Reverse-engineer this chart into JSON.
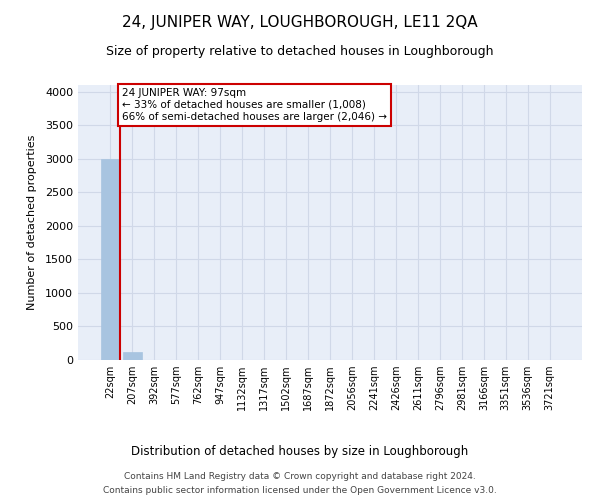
{
  "title": "24, JUNIPER WAY, LOUGHBOROUGH, LE11 2QA",
  "subtitle": "Size of property relative to detached houses in Loughborough",
  "xlabel": "Distribution of detached houses by size in Loughborough",
  "ylabel": "Number of detached properties",
  "categories": [
    "22sqm",
    "207sqm",
    "392sqm",
    "577sqm",
    "762sqm",
    "947sqm",
    "1132sqm",
    "1317sqm",
    "1502sqm",
    "1687sqm",
    "1872sqm",
    "2056sqm",
    "2241sqm",
    "2426sqm",
    "2611sqm",
    "2796sqm",
    "2981sqm",
    "3166sqm",
    "3351sqm",
    "3536sqm",
    "3721sqm"
  ],
  "values": [
    3000,
    120,
    5,
    2,
    1,
    1,
    1,
    0,
    0,
    0,
    0,
    0,
    0,
    0,
    0,
    0,
    0,
    0,
    0,
    0,
    0
  ],
  "bar_color": "#a8c4e0",
  "annotation_box_color": "#cc0000",
  "annotation_text_line1": "24 JUNIPER WAY: 97sqm",
  "annotation_text_line2": "← 33% of detached houses are smaller (1,008)",
  "annotation_text_line3": "66% of semi-detached houses are larger (2,046) →",
  "ylim": [
    0,
    4100
  ],
  "yticks": [
    0,
    500,
    1000,
    1500,
    2000,
    2500,
    3000,
    3500,
    4000
  ],
  "grid_color": "#d0d8e8",
  "background_color": "#e8eef8",
  "footer_line1": "Contains HM Land Registry data © Crown copyright and database right 2024.",
  "footer_line2": "Contains public sector information licensed under the Open Government Licence v3.0."
}
